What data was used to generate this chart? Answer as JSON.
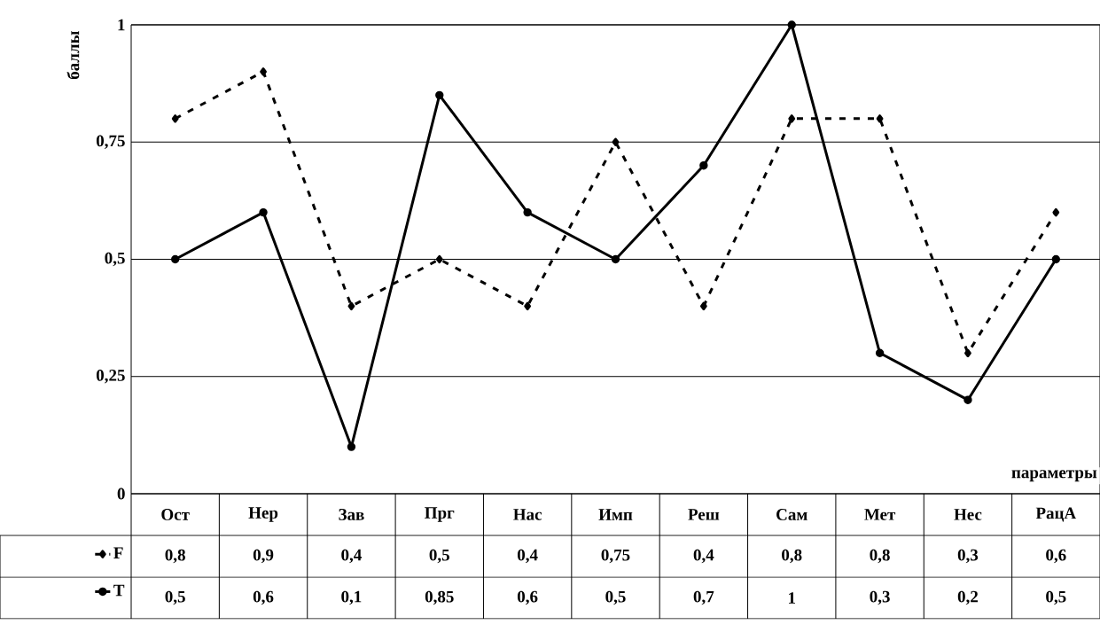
{
  "chart_data": {
    "type": "line",
    "ylabel": "баллы",
    "xlabel": "параметры",
    "categories": [
      "Ост",
      "Нер",
      "Зав",
      "Прг",
      "Нас",
      "Имп",
      "Реш",
      "Сам",
      "Мет",
      "Нес",
      "РацА"
    ],
    "series": [
      {
        "name": "F",
        "color": "#000000",
        "marker": "diamond",
        "line_style": "dashed",
        "values": [
          0.8,
          0.9,
          0.4,
          0.5,
          0.4,
          0.75,
          0.4,
          0.8,
          0.8,
          0.3,
          0.6
        ],
        "value_labels": [
          "0,8",
          "0,9",
          "0,4",
          "0,5",
          "0,4",
          "0,75",
          "0,4",
          "0,8",
          "0,8",
          "0,3",
          "0,6"
        ]
      },
      {
        "name": "T",
        "color": "#000000",
        "marker": "circle",
        "line_style": "solid",
        "values": [
          0.5,
          0.6,
          0.1,
          0.85,
          0.6,
          0.5,
          0.7,
          1,
          0.3,
          0.2,
          0.5
        ],
        "value_labels": [
          "0,5",
          "0,6",
          "0,1",
          "0,85",
          "0,6",
          "0,5",
          "0,7",
          "1",
          "0,3",
          "0,2",
          "0,5"
        ]
      }
    ],
    "ylim": [
      0,
      1
    ],
    "yticks": [
      {
        "value": 0,
        "label": "0"
      },
      {
        "value": 0.25,
        "label": "0,25"
      },
      {
        "value": 0.5,
        "label": "0,5"
      },
      {
        "value": 0.75,
        "label": "0,75"
      },
      {
        "value": 1,
        "label": "1"
      }
    ],
    "grid": true,
    "legend": "bottom"
  }
}
